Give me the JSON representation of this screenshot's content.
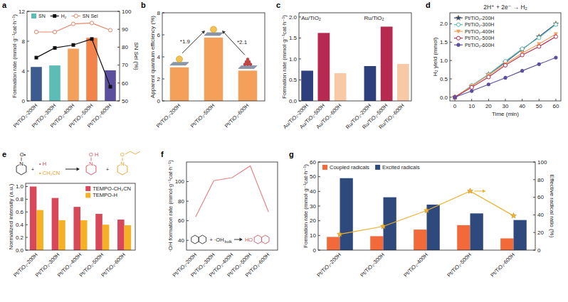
{
  "chart_data": [
    {
      "panel": "a",
      "type": "bar",
      "categories": [
        "Pt/TiO₂-200H",
        "Pt/TiO₂-300H",
        "Pt/TiO₂-400H",
        "Pt/TiO₂-500H",
        "Pt/TiO₂-600H"
      ],
      "y_label": "Formation rate (mmol·g⁻¹cat·h⁻¹)",
      "y2_label": "SN Sel (%)",
      "ylim": [
        0,
        12
      ],
      "yticks": [
        0,
        4,
        8,
        12
      ],
      "y2lim": [
        50,
        100
      ],
      "y2ticks": [
        50,
        60,
        70,
        80,
        90,
        100
      ],
      "legend": "upper left",
      "series": [
        {
          "name": "SN",
          "type": "bar",
          "color": "#5cbcb6",
          "colors": [
            "#3c5b8e",
            "#5cbcb6",
            "#f5a05a",
            "#f2834a",
            "#5b4f9e"
          ],
          "values": [
            4.55,
            4.75,
            7.0,
            8.45,
            4.1
          ]
        },
        {
          "name": "H₂",
          "type": "line",
          "color": "#111111",
          "marker": "square",
          "values": [
            5.8,
            7.1,
            7.5,
            8.3,
            1.9
          ]
        },
        {
          "name": "SN Sel",
          "type": "line",
          "color": "#e8876a",
          "marker": "open-circle",
          "axis": "y2",
          "values": [
            88.5,
            88.5,
            93,
            93.5,
            89.5
          ]
        }
      ]
    },
    {
      "panel": "b",
      "type": "bar",
      "categories": [
        "Pt/TiO₂-200H",
        "Pt/TiO₂-500H",
        "Pt/TiO₂-600H"
      ],
      "y_label": "Apparent quantum efficiency (%)",
      "ylim": [
        0,
        8
      ],
      "yticks": [
        0,
        2,
        4,
        6,
        8
      ],
      "values": [
        3.05,
        5.75,
        2.75
      ],
      "color": "#f5a05a",
      "annotations": [
        "*1.9",
        "*2.1"
      ]
    },
    {
      "panel": "c",
      "type": "bar",
      "categories": [
        "Au/TiO₂-200H",
        "Au/TiO₂-500H",
        "Au/TiO₂-600H",
        "Ru/TiO₂-200H",
        "Ru/TiO₂-500H",
        "Ru/TiO₂-600H"
      ],
      "y_label": "Formation rate (mmol·g⁻¹cat·h⁻¹)",
      "ylim": [
        0,
        2.1
      ],
      "yticks": [
        {
          "value": 0,
          "label": "0.0"
        },
        0.5,
        {
          "value": 1,
          "label": "1.0"
        },
        1.5,
        {
          "value": 2,
          "label": "2.0"
        }
      ],
      "values": [
        0.72,
        1.62,
        0.66,
        0.83,
        1.77,
        0.88
      ],
      "colors": [
        "#2e3f7d",
        "#b8294f",
        "#f8c9a5",
        "#2e3f7d",
        "#b8294f",
        "#f8c9a5"
      ],
      "annotations": [
        "Au/TiO₂",
        "Ru/TiO₂"
      ]
    },
    {
      "panel": "d",
      "type": "line",
      "title": "2H⁺ + 2e⁻ → H₂",
      "x_label": "Time (min)",
      "y_label": "H₂ yield (mmol)",
      "x": [
        0,
        10,
        20,
        30,
        40,
        50,
        60
      ],
      "xlim": [
        -3,
        63
      ],
      "xticks": [
        0,
        10,
        20,
        30,
        40,
        50,
        60
      ],
      "ylim": [
        -0.1,
        2.3
      ],
      "yticks": [
        {
          "value": 0,
          "label": "0.0"
        },
        0.5,
        {
          "value": 1,
          "label": "1.0"
        },
        1.5,
        {
          "value": 2,
          "label": "2.0"
        }
      ],
      "legend": "upper left",
      "series": [
        {
          "name": "Pt/TiO₂-200H",
          "color": "#2e4a7d",
          "marker": "star",
          "values": [
            0,
            0.3,
            0.62,
            0.95,
            1.3,
            1.65,
            2.0
          ]
        },
        {
          "name": "Pt/TiO₂-300H",
          "color": "#5cbcb6",
          "marker": "open-circle",
          "values": [
            0,
            0.32,
            0.62,
            0.98,
            1.32,
            1.62,
            1.98
          ]
        },
        {
          "name": "Pt/TiO₂-400H",
          "color": "#f5a05a",
          "marker": "triangle-down",
          "values": [
            0,
            0.3,
            0.6,
            0.9,
            1.2,
            1.45,
            1.72
          ]
        },
        {
          "name": "Pt/TiO₂-500H",
          "color": "#b8294f",
          "marker": "open-circle",
          "values": [
            0,
            0.27,
            0.55,
            0.87,
            1.15,
            1.38,
            1.65
          ]
        },
        {
          "name": "Pt/TiO₂-600H",
          "color": "#5b4f9e",
          "marker": "circle",
          "values": [
            0,
            0.17,
            0.35,
            0.53,
            0.72,
            0.9,
            1.08
          ]
        }
      ]
    },
    {
      "panel": "e",
      "type": "bar",
      "categories": [
        "Pt/TiO₂-200H",
        "Pt/TiO₂-300H",
        "Pt/TiO₂-400H",
        "Pt/TiO₂-500H",
        "Pt/TiO₂-600H"
      ],
      "y_label": "Normalized intensity (a.u.)",
      "ylim": [
        0,
        1.05
      ],
      "yticks": [
        {
          "value": 0,
          "label": "0.0"
        },
        0.2,
        0.4,
        0.6,
        0.8,
        {
          "value": 1,
          "label": "1.0"
        }
      ],
      "legend": "upper right",
      "series": [
        {
          "name": "TEMPO-CH₂CN",
          "color": "#d9485a",
          "values": [
            1.0,
            0.82,
            0.68,
            0.57,
            0.48
          ]
        },
        {
          "name": "TEMPO-H",
          "color": "#f5b025",
          "values": [
            0.63,
            0.47,
            0.47,
            0.4,
            0.39
          ]
        }
      ],
      "annotations": [
        "N",
        "O•",
        "+",
        "• H",
        "• CH₂CN",
        "N",
        "O",
        "H",
        "+",
        "N",
        "O"
      ]
    },
    {
      "panel": "f",
      "type": "line",
      "categories": [
        "Pt/TiO₂-200H",
        "Pt/TiO₂-300H",
        "Pt/TiO₂-400H",
        "Pt/TiO₂-500H",
        "Pt/TiO₂-600H"
      ],
      "y_label": "·OH formation rate (mmol·g⁻¹cat·h⁻¹)",
      "ylim": [
        30,
        120
      ],
      "yticks": [
        40,
        60,
        80,
        100
      ],
      "values": [
        64,
        101,
        104,
        116,
        69
      ],
      "color": "#e8868a",
      "annotations": [
        "+ ·OH",
        "bulk",
        "HO"
      ]
    },
    {
      "panel": "g",
      "type": "bar",
      "categories": [
        "Pt/TiO₂-200H",
        "Pt/TiO₂-300H",
        "Pt/TiO₂-400H",
        "Pt/TiO₂-500H",
        "Pt/TiO₂-600H"
      ],
      "y_label": "Formation rate (mmol·g⁻¹cat·h⁻¹)",
      "y2_label": "Effective radical ratio (%)",
      "ylim": [
        0,
        60
      ],
      "yticks": [
        0,
        10,
        20,
        30,
        40,
        50,
        60
      ],
      "y2lim": [
        0,
        100
      ],
      "y2ticks": [
        0,
        20,
        40,
        60,
        80,
        100
      ],
      "legend": "upper left",
      "series": [
        {
          "name": "Coupled radicals",
          "type": "bar",
          "color": "#f26a3a",
          "values": [
            9,
            9.5,
            14,
            17,
            8
          ]
        },
        {
          "name": "Excited radicals",
          "type": "bar",
          "color": "#2e4a7d",
          "values": [
            49,
            36,
            31,
            25,
            20.5
          ]
        },
        {
          "type": "line",
          "axis": "y2",
          "color": "#f0b030",
          "marker": "star",
          "values": [
            18,
            27,
            45,
            67,
            39
          ]
        }
      ]
    }
  ]
}
